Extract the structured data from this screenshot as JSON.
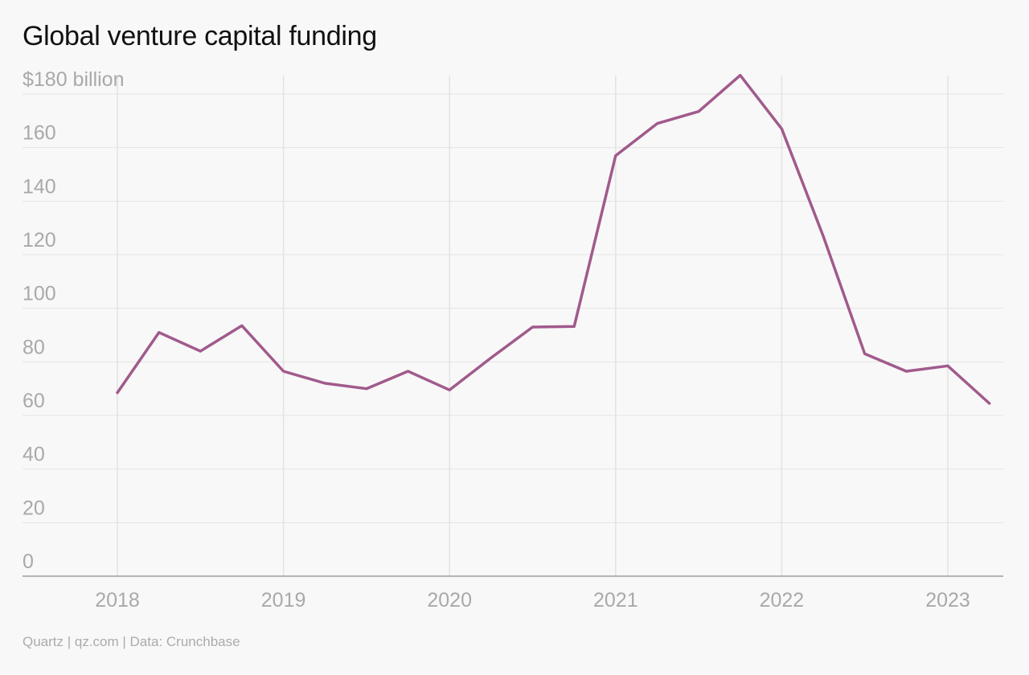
{
  "chart_data": {
    "type": "line",
    "title": "Global venture capital funding",
    "source": "Quartz | qz.com | Data: Crunchbase",
    "y_unit_label": "$180 billion",
    "ylim": [
      0,
      180
    ],
    "yticks": [
      0,
      20,
      40,
      60,
      80,
      100,
      120,
      140,
      160,
      180
    ],
    "ytick_labels": [
      "0",
      "20",
      "40",
      "60",
      "80",
      "100",
      "120",
      "140",
      "160",
      "$180 billion"
    ],
    "xlim": [
      2018,
      2023.35
    ],
    "xticks": [
      2018,
      2019,
      2020,
      2021,
      2022,
      2023
    ],
    "xtick_labels": [
      "2018",
      "2019",
      "2020",
      "2021",
      "2022",
      "2023"
    ],
    "grid": true,
    "line_color": "#a15a8c",
    "x": [
      "2018-Q1",
      "2018-Q2",
      "2018-Q3",
      "2018-Q4",
      "2019-Q1",
      "2019-Q2",
      "2019-Q3",
      "2019-Q4",
      "2020-Q1",
      "2020-Q2",
      "2020-Q3",
      "2020-Q4",
      "2021-Q1",
      "2021-Q2",
      "2021-Q3",
      "2021-Q4",
      "2022-Q1",
      "2022-Q2",
      "2022-Q3",
      "2022-Q4",
      "2023-Q1",
      "2023-Q2"
    ],
    "values": [
      68.5,
      91,
      84,
      93.5,
      76.5,
      72,
      70,
      76.5,
      69.5,
      81.5,
      93,
      93.2,
      157,
      169,
      173.5,
      187,
      167,
      127,
      83,
      76.5,
      78.5,
      64.5
    ]
  }
}
